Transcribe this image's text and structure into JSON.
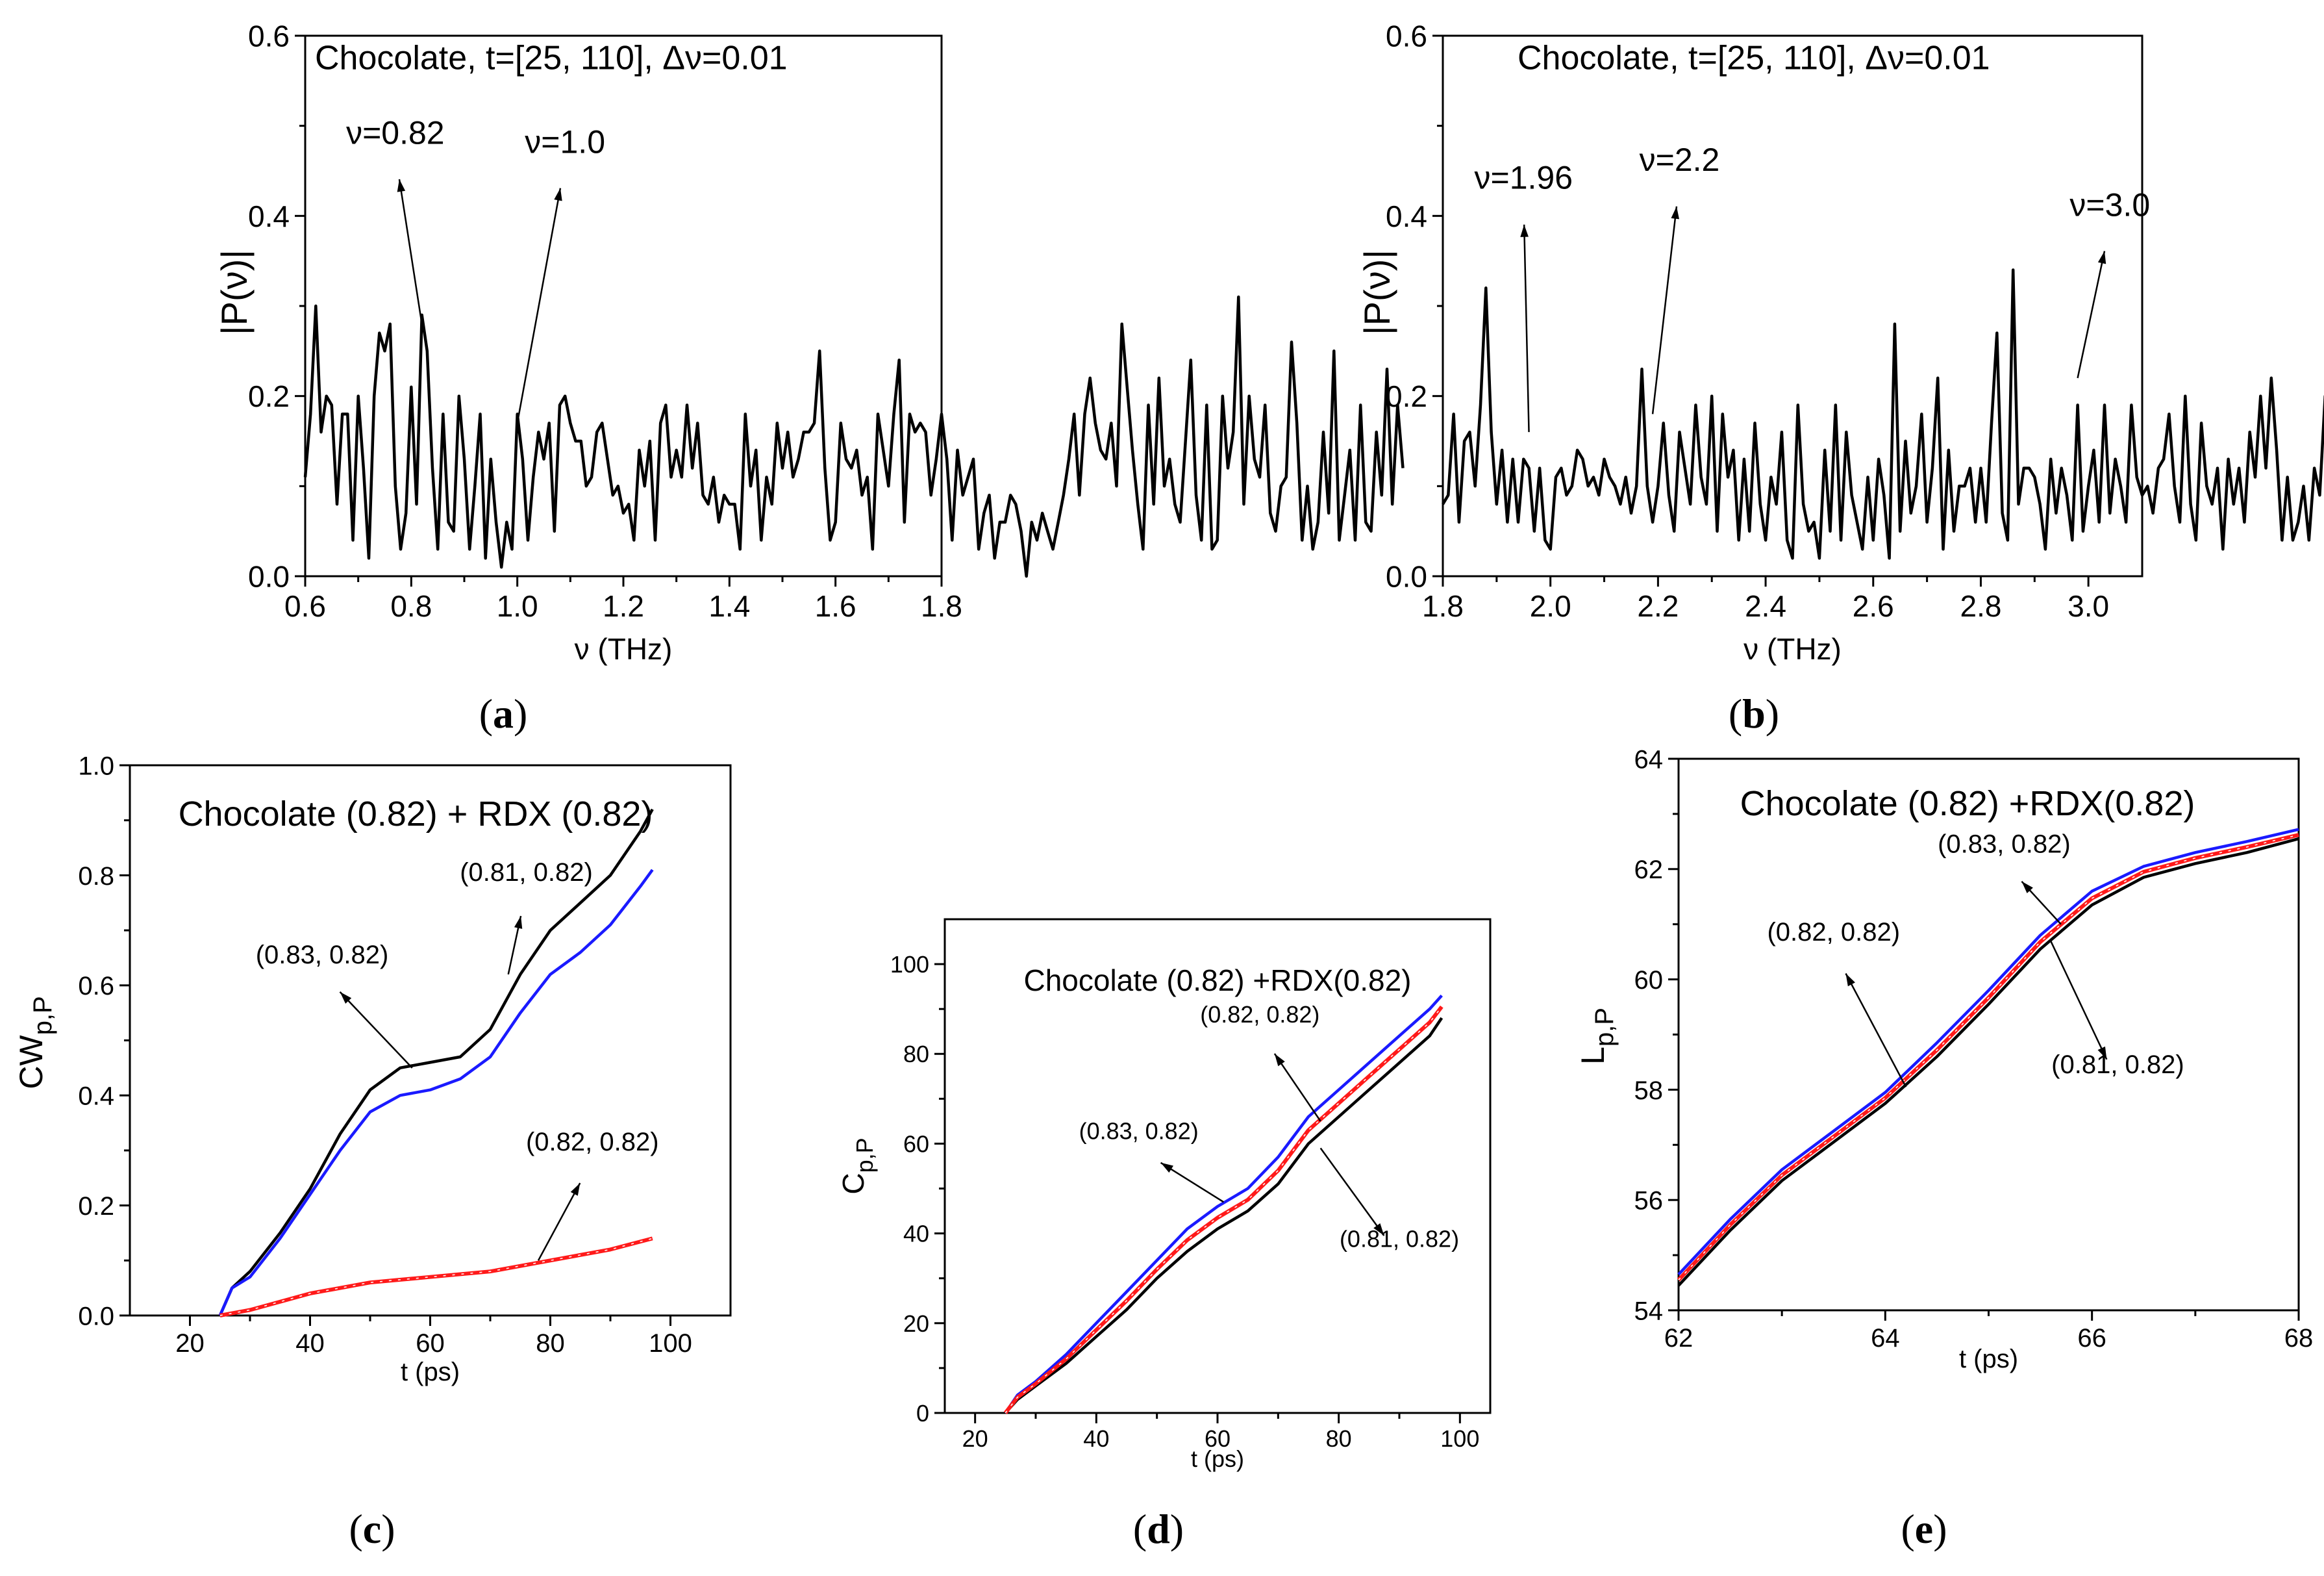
{
  "figure_labels": {
    "a": "a",
    "b": "b",
    "c": "c",
    "d": "d",
    "e": "e"
  },
  "colors": {
    "black": "#000000",
    "blue": "#1a1aff",
    "red": "#ff1a1a"
  },
  "chart_data": [
    {
      "id": "a",
      "type": "line",
      "title": "Chocolate, t=[25, 110],  Δν=0.01",
      "xlabel": "ν (THz)",
      "ylabel": "|P(ν)|",
      "xlim": [
        0.6,
        1.8
      ],
      "ylim": [
        0.0,
        0.6
      ],
      "xticks": [
        0.6,
        0.8,
        1.0,
        1.2,
        1.4,
        1.6,
        1.8
      ],
      "xtick_labels": [
        "0.6",
        "0.8",
        "1.0",
        "1.2",
        "1.4",
        "1.6",
        "1.8"
      ],
      "yticks": [
        0.0,
        0.2,
        0.4,
        0.6
      ],
      "ytick_labels": [
        "0.0",
        "0.2",
        "0.4",
        "0.6"
      ],
      "series": [
        {
          "name": "|P(ν)|",
          "color": "#000000",
          "x0": 0.6,
          "dx": 0.01,
          "values": [
            0.11,
            0.18,
            0.3,
            0.16,
            0.2,
            0.19,
            0.08,
            0.18,
            0.18,
            0.04,
            0.2,
            0.12,
            0.02,
            0.2,
            0.27,
            0.25,
            0.28,
            0.1,
            0.03,
            0.07,
            0.21,
            0.08,
            0.29,
            0.25,
            0.12,
            0.03,
            0.18,
            0.06,
            0.05,
            0.2,
            0.13,
            0.03,
            0.1,
            0.18,
            0.02,
            0.13,
            0.06,
            0.01,
            0.06,
            0.03,
            0.18,
            0.13,
            0.04,
            0.11,
            0.16,
            0.13,
            0.17,
            0.05,
            0.19,
            0.2,
            0.17,
            0.15,
            0.15,
            0.1,
            0.11,
            0.16,
            0.17,
            0.13,
            0.09,
            0.1,
            0.07,
            0.08,
            0.04,
            0.14,
            0.1,
            0.15,
            0.04,
            0.17,
            0.19,
            0.11,
            0.14,
            0.11,
            0.19,
            0.12,
            0.17,
            0.09,
            0.08,
            0.11,
            0.06,
            0.09,
            0.08,
            0.08,
            0.03,
            0.18,
            0.1,
            0.14,
            0.04,
            0.11,
            0.08,
            0.17,
            0.12,
            0.16,
            0.11,
            0.13,
            0.16,
            0.16,
            0.17,
            0.25,
            0.12,
            0.04,
            0.06,
            0.17,
            0.13,
            0.12,
            0.14,
            0.09,
            0.11,
            0.03,
            0.18,
            0.14,
            0.1,
            0.18,
            0.24,
            0.06,
            0.18,
            0.16,
            0.17,
            0.16,
            0.09,
            0.13,
            0.18,
            0.13,
            0.04,
            0.14,
            0.09,
            0.11,
            0.13,
            0.03,
            0.07,
            0.09,
            0.02,
            0.06,
            0.06,
            0.09,
            0.08,
            0.05,
            0.0,
            0.06,
            0.04,
            0.07,
            0.05,
            0.03,
            0.06,
            0.09,
            0.13,
            0.18,
            0.09,
            0.18,
            0.22,
            0.17,
            0.14,
            0.13,
            0.17,
            0.1,
            0.28,
            0.21,
            0.14,
            0.08,
            0.03,
            0.19,
            0.08,
            0.22,
            0.1,
            0.13,
            0.08,
            0.06,
            0.15,
            0.24,
            0.09,
            0.04,
            0.19,
            0.03,
            0.04,
            0.2,
            0.12,
            0.16,
            0.31,
            0.08,
            0.2,
            0.13,
            0.11,
            0.19,
            0.07,
            0.05,
            0.1,
            0.11,
            0.26,
            0.17,
            0.04,
            0.1,
            0.03,
            0.06,
            0.16,
            0.07,
            0.25,
            0.04,
            0.09,
            0.14,
            0.04,
            0.19,
            0.06,
            0.05,
            0.16,
            0.09,
            0.23,
            0.08,
            0.19,
            0.12
          ]
        }
      ],
      "annotations": [
        {
          "text": "ν=0.82",
          "x": 0.82,
          "y": 0.28,
          "label_x": 0.77,
          "label_y": 0.48
        },
        {
          "text": "ν=1.0",
          "x": 1.0,
          "y": 0.17,
          "label_x": 1.09,
          "label_y": 0.47
        }
      ]
    },
    {
      "id": "b",
      "type": "line",
      "title": "Chocolate, t=[25, 110],  Δν=0.01",
      "xlabel": "ν (THz)",
      "ylabel": "|P(ν)|",
      "xlim": [
        1.8,
        3.1
      ],
      "ylim": [
        0.0,
        0.6
      ],
      "xticks": [
        1.8,
        2.0,
        2.2,
        2.4,
        2.6,
        2.8,
        3.0
      ],
      "xtick_labels": [
        "1.8",
        "2.0",
        "2.2",
        "2.4",
        "2.6",
        "2.8",
        "3.0"
      ],
      "yticks": [
        0.0,
        0.2,
        0.4,
        0.6
      ],
      "ytick_labels": [
        "0.0",
        "0.2",
        "0.4",
        "0.6"
      ],
      "series": [
        {
          "name": "|P(ν)|",
          "color": "#000000",
          "x0": 1.8,
          "dx": 0.01,
          "values": [
            0.08,
            0.09,
            0.18,
            0.06,
            0.15,
            0.16,
            0.1,
            0.19,
            0.32,
            0.16,
            0.08,
            0.14,
            0.06,
            0.13,
            0.06,
            0.13,
            0.12,
            0.05,
            0.12,
            0.04,
            0.03,
            0.11,
            0.12,
            0.09,
            0.1,
            0.14,
            0.13,
            0.1,
            0.11,
            0.09,
            0.13,
            0.11,
            0.1,
            0.08,
            0.11,
            0.07,
            0.1,
            0.23,
            0.1,
            0.06,
            0.1,
            0.17,
            0.09,
            0.05,
            0.16,
            0.12,
            0.08,
            0.19,
            0.11,
            0.08,
            0.2,
            0.05,
            0.18,
            0.11,
            0.14,
            0.04,
            0.13,
            0.05,
            0.17,
            0.08,
            0.04,
            0.11,
            0.08,
            0.16,
            0.04,
            0.02,
            0.19,
            0.08,
            0.05,
            0.06,
            0.02,
            0.14,
            0.05,
            0.19,
            0.04,
            0.16,
            0.09,
            0.06,
            0.03,
            0.11,
            0.04,
            0.13,
            0.09,
            0.02,
            0.28,
            0.05,
            0.15,
            0.07,
            0.1,
            0.18,
            0.06,
            0.12,
            0.22,
            0.03,
            0.14,
            0.05,
            0.1,
            0.1,
            0.12,
            0.06,
            0.12,
            0.06,
            0.17,
            0.27,
            0.07,
            0.04,
            0.34,
            0.08,
            0.12,
            0.12,
            0.11,
            0.08,
            0.03,
            0.13,
            0.07,
            0.12,
            0.09,
            0.04,
            0.19,
            0.05,
            0.1,
            0.14,
            0.06,
            0.19,
            0.07,
            0.13,
            0.1,
            0.06,
            0.19,
            0.11,
            0.09,
            0.1,
            0.07,
            0.12,
            0.13,
            0.18,
            0.1,
            0.06,
            0.2,
            0.08,
            0.04,
            0.17,
            0.1,
            0.08,
            0.12,
            0.03,
            0.13,
            0.08,
            0.12,
            0.06,
            0.16,
            0.11,
            0.2,
            0.12,
            0.22,
            0.14,
            0.04,
            0.11,
            0.04,
            0.06,
            0.1,
            0.04,
            0.12,
            0.09,
            0.2,
            0.13,
            0.18
          ]
        }
      ],
      "annotations": [
        {
          "text": "ν=1.96",
          "x": 1.96,
          "y": 0.16,
          "label_x": 1.95,
          "label_y": 0.43
        },
        {
          "text": "ν=2.2",
          "x": 2.19,
          "y": 0.18,
          "label_x": 2.24,
          "label_y": 0.45
        },
        {
          "text": "ν=3.0",
          "x": 2.98,
          "y": 0.22,
          "label_x": 3.04,
          "label_y": 0.4
        }
      ]
    },
    {
      "id": "c",
      "type": "line",
      "title": "Chocolate (0.82) + RDX (0.82)",
      "xlabel": "t (ps)",
      "ylabel_main": "CW",
      "ylabel_sub": "p,P",
      "xlim": [
        10,
        110
      ],
      "ylim": [
        0.0,
        1.0
      ],
      "xticks": [
        20,
        40,
        60,
        80,
        100
      ],
      "xtick_labels": [
        "20",
        "40",
        "60",
        "80",
        "100"
      ],
      "yticks": [
        0.0,
        0.2,
        0.4,
        0.6,
        0.8,
        1.0
      ],
      "ytick_labels": [
        "0.0",
        "0.2",
        "0.4",
        "0.6",
        "0.8",
        "1.0"
      ],
      "series": [
        {
          "name": "(0.81, 0.82)",
          "color": "#000000",
          "x": [
            25,
            27,
            30,
            35,
            40,
            45,
            50,
            55,
            60,
            65,
            70,
            75,
            80,
            85,
            90,
            95,
            97
          ],
          "values": [
            0.0,
            0.05,
            0.08,
            0.15,
            0.23,
            0.33,
            0.41,
            0.45,
            0.46,
            0.47,
            0.52,
            0.62,
            0.7,
            0.75,
            0.8,
            0.88,
            0.92
          ]
        },
        {
          "name": "(0.83, 0.82)",
          "color": "#1a1aff",
          "x": [
            25,
            27,
            30,
            35,
            40,
            45,
            50,
            55,
            60,
            65,
            70,
            75,
            80,
            85,
            90,
            95,
            97
          ],
          "values": [
            0.0,
            0.05,
            0.07,
            0.14,
            0.22,
            0.3,
            0.37,
            0.4,
            0.41,
            0.43,
            0.47,
            0.55,
            0.62,
            0.66,
            0.71,
            0.78,
            0.81
          ]
        },
        {
          "name": "(0.82, 0.82)",
          "color": "#ff1a1a",
          "x": [
            25,
            30,
            40,
            50,
            60,
            70,
            80,
            90,
            97
          ],
          "values": [
            0.0,
            0.01,
            0.04,
            0.06,
            0.07,
            0.08,
            0.1,
            0.12,
            0.14
          ]
        }
      ],
      "annotations": [
        {
          "text": "(0.81, 0.82)",
          "x": 73,
          "y": 0.62,
          "label_x": 76,
          "label_y": 0.79
        },
        {
          "text": "(0.83, 0.82)",
          "x": 57,
          "y": 0.45,
          "label_x": 42,
          "label_y": 0.64
        },
        {
          "text": "(0.82, 0.82)",
          "x": 78,
          "y": 0.1,
          "label_x": 87,
          "label_y": 0.3
        }
      ]
    },
    {
      "id": "d",
      "type": "line",
      "title": "Chocolate (0.82) +RDX(0.82)",
      "xlabel": "t (ps)",
      "ylabel_main": "C",
      "ylabel_sub": "p,P",
      "xlim": [
        15,
        105
      ],
      "ylim": [
        0,
        110
      ],
      "xticks": [
        20,
        40,
        60,
        80,
        100
      ],
      "xtick_labels": [
        "20",
        "40",
        "60",
        "80",
        "100"
      ],
      "yticks": [
        0,
        20,
        40,
        60,
        80,
        100
      ],
      "ytick_labels": [
        "0",
        "20",
        "40",
        "60",
        "80",
        "100"
      ],
      "series": [
        {
          "name": "(0.81, 0.82)",
          "color": "#000000",
          "x": [
            25,
            27,
            30,
            35,
            40,
            45,
            50,
            55,
            60,
            65,
            70,
            75,
            80,
            85,
            90,
            95,
            97
          ],
          "values": [
            0,
            3,
            6,
            11,
            17,
            23,
            30,
            36,
            41,
            45,
            51,
            60,
            66,
            72,
            78,
            84,
            88
          ]
        },
        {
          "name": "(0.83, 0.82)",
          "color": "#1a1aff",
          "x": [
            25,
            27,
            30,
            35,
            40,
            45,
            50,
            55,
            60,
            65,
            70,
            75,
            80,
            85,
            90,
            95,
            97
          ],
          "values": [
            0,
            4,
            7,
            13,
            20,
            27,
            34,
            41,
            46,
            50,
            57,
            66,
            72,
            78,
            84,
            90,
            93
          ]
        },
        {
          "name": "(0.82, 0.82)",
          "color": "#ff1a1a",
          "x": [
            25,
            27,
            30,
            35,
            40,
            45,
            50,
            55,
            60,
            65,
            70,
            75,
            80,
            85,
            90,
            95,
            97
          ],
          "values": [
            0,
            3.5,
            6.5,
            12,
            18.5,
            25,
            32,
            38.5,
            43.5,
            47.5,
            54,
            63,
            69,
            75,
            81,
            87,
            90.5
          ]
        }
      ],
      "annotations": [
        {
          "text": "(0.82, 0.82)",
          "x": 77,
          "y": 65,
          "label_x": 67,
          "label_y": 87
        },
        {
          "text": "(0.83, 0.82)",
          "x": 61,
          "y": 47,
          "label_x": 47,
          "label_y": 61
        },
        {
          "text": "(0.81, 0.82)",
          "x": 77,
          "y": 59,
          "label_x": 90,
          "label_y": 37
        }
      ]
    },
    {
      "id": "e",
      "type": "line",
      "title": "Chocolate (0.82) +RDX(0.82)",
      "xlabel": "t (ps)",
      "ylabel_main": "L",
      "ylabel_sub": "p,P",
      "xlim": [
        62,
        68
      ],
      "ylim": [
        54,
        64
      ],
      "xticks": [
        62,
        64,
        66,
        68
      ],
      "xtick_labels": [
        "62",
        "64",
        "66",
        "68"
      ],
      "yticks": [
        54,
        56,
        58,
        60,
        62,
        64
      ],
      "ytick_labels": [
        "54",
        "56",
        "58",
        "60",
        "62",
        "64"
      ],
      "series": [
        {
          "name": "(0.81, 0.82)",
          "color": "#000000",
          "x": [
            62,
            62.5,
            63,
            63.5,
            64,
            64.5,
            65,
            65.5,
            66,
            66.5,
            67,
            67.5,
            68
          ],
          "values": [
            54.45,
            55.45,
            56.35,
            57.05,
            57.75,
            58.6,
            59.55,
            60.55,
            61.35,
            61.85,
            62.1,
            62.3,
            62.55
          ]
        },
        {
          "name": "(0.82, 0.82)",
          "color": "#ff1a1a",
          "x": [
            62,
            62.5,
            63,
            63.5,
            64,
            64.5,
            65,
            65.5,
            66,
            66.5,
            67,
            67.5,
            68
          ],
          "values": [
            54.55,
            55.55,
            56.45,
            57.15,
            57.85,
            58.72,
            59.67,
            60.68,
            61.47,
            61.95,
            62.2,
            62.4,
            62.62
          ]
        },
        {
          "name": "(0.83, 0.82)",
          "color": "#1a1aff",
          "x": [
            62,
            62.5,
            63,
            63.5,
            64,
            64.5,
            65,
            65.5,
            66,
            66.5,
            67,
            67.5,
            68
          ],
          "values": [
            54.65,
            55.65,
            56.55,
            57.25,
            57.95,
            58.85,
            59.8,
            60.8,
            61.6,
            62.05,
            62.3,
            62.5,
            62.72
          ]
        }
      ],
      "annotations": [
        {
          "text": "(0.82, 0.82)",
          "x": 64.2,
          "y": 58.05,
          "label_x": 63.5,
          "label_y": 60.7
        },
        {
          "text": "(0.83, 0.82)",
          "x": 65.7,
          "y": 61.0,
          "label_x": 65.15,
          "label_y": 62.3
        },
        {
          "text": "(0.81, 0.82)",
          "x": 65.6,
          "y": 60.7,
          "label_x": 66.25,
          "label_y": 58.3
        }
      ]
    }
  ]
}
